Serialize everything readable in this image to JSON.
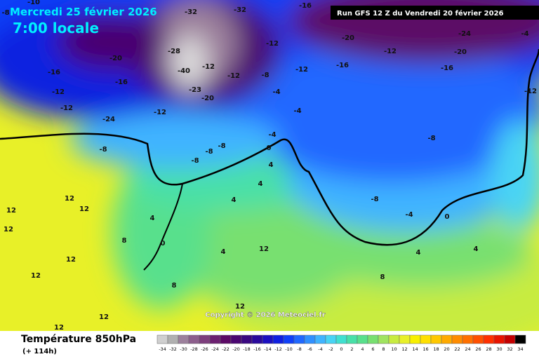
{
  "header": {
    "date": "Mercredi 25 février 2026",
    "time": "7:00 locale",
    "run": "Run GFS 12 Z du Vendredi 20 février 2026"
  },
  "footer": {
    "title": "Température 850hPa",
    "lead": "(+ 114h)",
    "copyright": "Copyright © 2026 Meteociel.fr"
  },
  "legend": {
    "values": [
      -34,
      -32,
      -30,
      -28,
      -26,
      -24,
      -22,
      -20,
      -18,
      -16,
      -14,
      -12,
      -10,
      -8,
      -6,
      -4,
      -2,
      0,
      2,
      4,
      6,
      8,
      10,
      12,
      14,
      16,
      18,
      20,
      22,
      24,
      26,
      28,
      30,
      32,
      34
    ],
    "colors": [
      "#cfcfcf",
      "#b0b0b0",
      "#9c809c",
      "#8c5e8c",
      "#7c3e7c",
      "#6c2070",
      "#5c0a66",
      "#4a0670",
      "#3a0880",
      "#2a0a9c",
      "#1c10c0",
      "#1020e0",
      "#1040f8",
      "#2068ff",
      "#3090ff",
      "#40b4ff",
      "#48d4f4",
      "#40e0d0",
      "#48e0a8",
      "#58e08c",
      "#78e070",
      "#a0e460",
      "#c8ec40",
      "#e8f028",
      "#f8f000",
      "#ffe000",
      "#ffc800",
      "#ffaa00",
      "#ff8c00",
      "#ff7000",
      "#ff5000",
      "#ff3000",
      "#e81400",
      "#c40000",
      "#000000"
    ]
  },
  "map_labels": [
    "-8",
    "-10",
    "-16",
    "-32",
    "-32",
    "-20",
    "-16",
    "-12",
    "-16",
    "-12",
    "-24",
    "-8",
    "-28",
    "-40",
    "-23",
    "-20",
    "-12",
    "-12",
    "-12",
    "-8",
    "-12",
    "-12",
    "-16",
    "-20",
    "-12",
    "-24",
    "-20",
    "-16",
    "-4",
    "-12",
    "-8",
    "-8",
    "-8",
    "-8",
    "-4",
    "0",
    "-4",
    "-4",
    "4",
    "4",
    "4",
    "-8",
    "-4",
    "0",
    "4",
    "4",
    "12",
    "12",
    "12",
    "12",
    "8",
    "4",
    "0",
    "12",
    "12",
    "8",
    "12",
    "12",
    "12",
    "8",
    "4",
    "12"
  ]
}
